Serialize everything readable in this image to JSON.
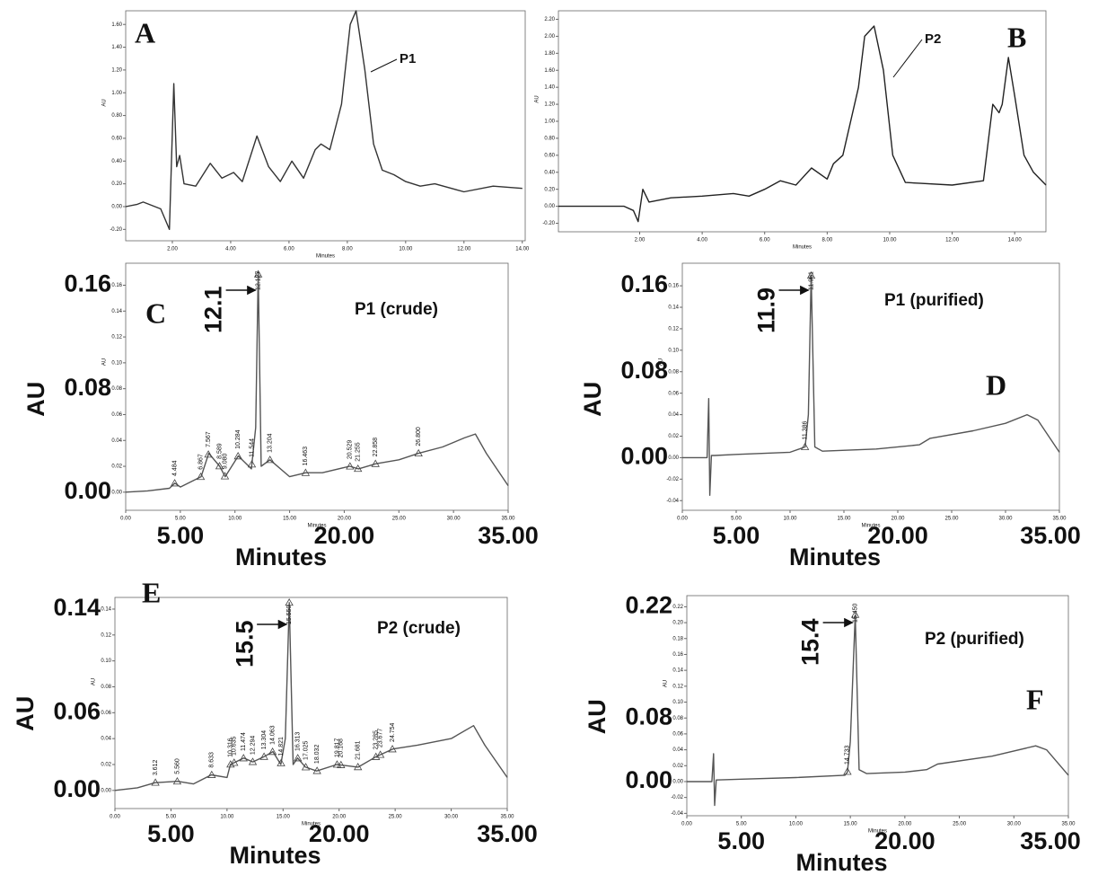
{
  "chart_data": [
    {
      "type": "line",
      "panel": "A",
      "peak_tag": "P1",
      "x_label": "Minutes",
      "y_label": "AU",
      "xlim": [
        0.4,
        14.1
      ],
      "ylim": [
        -0.3,
        1.72
      ],
      "xticks": [
        {
          "value": 2,
          "label": "2.00"
        },
        {
          "value": 4,
          "label": "4.00"
        },
        {
          "value": 6,
          "label": "6.00"
        },
        {
          "value": 8,
          "label": "8.00"
        },
        {
          "value": 10,
          "label": "10.00"
        },
        {
          "value": 12,
          "label": "12.00"
        },
        {
          "value": 14,
          "label": "14.00"
        }
      ],
      "yticks": [
        {
          "value": -0.2,
          "label": "-0.20"
        },
        {
          "value": 0,
          "label": "0.00"
        },
        {
          "value": 0.2,
          "label": "0.20"
        },
        {
          "value": 0.4,
          "label": "0.40"
        },
        {
          "value": 0.6,
          "label": "0.60"
        },
        {
          "value": 0.8,
          "label": "0.80"
        },
        {
          "value": 1,
          "label": "1.00"
        },
        {
          "value": 1.2,
          "label": "1.20"
        },
        {
          "value": 1.4,
          "label": "1.40"
        },
        {
          "value": 1.6,
          "label": "1.60"
        }
      ],
      "x": [
        0.4,
        0.8,
        1,
        1.6,
        1.9,
        2.05,
        2.15,
        2.25,
        2.4,
        2.8,
        3.3,
        3.7,
        4.1,
        4.4,
        4.9,
        5.3,
        5.7,
        6.1,
        6.5,
        6.9,
        7.1,
        7.4,
        7.8,
        8.1,
        8.3,
        8.6,
        8.9,
        9.2,
        9.6,
        10,
        10.5,
        11,
        12,
        13,
        14
      ],
      "series": [
        {
          "color": "#333333",
          "values": [
            0,
            0.02,
            0.04,
            -0.02,
            -0.2,
            1.08,
            0.35,
            0.45,
            0.2,
            0.18,
            0.38,
            0.25,
            0.3,
            0.22,
            0.62,
            0.35,
            0.22,
            0.4,
            0.25,
            0.5,
            0.55,
            0.5,
            0.9,
            1.6,
            1.72,
            1.2,
            0.55,
            0.32,
            0.28,
            0.22,
            0.18,
            0.2,
            0.13,
            0.18,
            0.16
          ]
        }
      ]
    },
    {
      "type": "line",
      "panel": "B",
      "peak_tag": "P2",
      "x_label": "Minutes",
      "y_label": "AU",
      "xlim": [
        -0.6,
        15
      ],
      "ylim": [
        -0.3,
        2.3
      ],
      "xticks": [
        {
          "value": 2,
          "label": "2.00"
        },
        {
          "value": 4,
          "label": "4.00"
        },
        {
          "value": 6,
          "label": "6.00"
        },
        {
          "value": 8,
          "label": "8.00"
        },
        {
          "value": 10,
          "label": "10.00"
        },
        {
          "value": 12,
          "label": "12.00"
        },
        {
          "value": 14,
          "label": "14.00"
        }
      ],
      "yticks": [
        {
          "value": -0.2,
          "label": "-0.20"
        },
        {
          "value": 0,
          "label": "0.00"
        },
        {
          "value": 0.2,
          "label": "0.20"
        },
        {
          "value": 0.4,
          "label": "0.40"
        },
        {
          "value": 0.6,
          "label": "0.60"
        },
        {
          "value": 0.8,
          "label": "0.80"
        },
        {
          "value": 1,
          "label": "1.00"
        },
        {
          "value": 1.2,
          "label": "1.20"
        },
        {
          "value": 1.4,
          "label": "1.40"
        },
        {
          "value": 1.6,
          "label": "1.60"
        },
        {
          "value": 1.8,
          "label": "1.80"
        },
        {
          "value": 2,
          "label": "2.00"
        },
        {
          "value": 2.2,
          "label": "2.20"
        }
      ],
      "x": [
        -0.6,
        1,
        1.5,
        1.8,
        1.95,
        2.1,
        2.3,
        3,
        4,
        5,
        5.5,
        6,
        6.5,
        7,
        7.5,
        8,
        8.2,
        8.5,
        9,
        9.2,
        9.5,
        9.8,
        10.1,
        10.5,
        11,
        12,
        13,
        13.3,
        13.5,
        13.6,
        13.8,
        14,
        14.3,
        14.6,
        15
      ],
      "series": [
        {
          "color": "#222222",
          "values": [
            0,
            0,
            0,
            -0.05,
            -0.18,
            0.2,
            0.05,
            0.1,
            0.12,
            0.15,
            0.12,
            0.2,
            0.3,
            0.25,
            0.45,
            0.32,
            0.5,
            0.6,
            1.4,
            2.0,
            2.12,
            1.6,
            0.6,
            0.28,
            0.27,
            0.25,
            0.3,
            1.2,
            1.1,
            1.2,
            1.75,
            1.3,
            0.6,
            0.4,
            0.25
          ]
        }
      ]
    },
    {
      "type": "line",
      "panel": "C",
      "title": "P1 (crude)",
      "callout": 12.1,
      "x_label": "Minutes",
      "y_label": "AU",
      "xlim": [
        0,
        35
      ],
      "ylim": [
        -0.014,
        0.177
      ],
      "xticks": [
        {
          "value": 0,
          "label": "0.00"
        },
        {
          "value": 5,
          "label": "5.00"
        },
        {
          "value": 10,
          "label": "10.00"
        },
        {
          "value": 15,
          "label": "15.00"
        },
        {
          "value": 20,
          "label": "20.00"
        },
        {
          "value": 25,
          "label": "25.00"
        },
        {
          "value": 30,
          "label": "30.00"
        },
        {
          "value": 35,
          "label": "35.00"
        }
      ],
      "yticks": [
        {
          "value": 0,
          "label": "0.00"
        },
        {
          "value": 0.02,
          "label": "0.02"
        },
        {
          "value": 0.04,
          "label": "0.04"
        },
        {
          "value": 0.06,
          "label": "0.06"
        },
        {
          "value": 0.08,
          "label": "0.08"
        },
        {
          "value": 0.1,
          "label": "0.10"
        },
        {
          "value": 0.12,
          "label": "0.12"
        },
        {
          "value": 0.14,
          "label": "0.14"
        },
        {
          "value": 0.16,
          "label": "0.16"
        }
      ],
      "big_yticks": [
        {
          "value": 0.16,
          "label": "0.16"
        },
        {
          "value": 0.08,
          "label": "0.08"
        },
        {
          "value": 0,
          "label": "0.00"
        }
      ],
      "big_xticks": [
        {
          "value": 5,
          "label": "5.00"
        },
        {
          "value": 20,
          "label": "20.00"
        },
        {
          "value": 35,
          "label": "35.00"
        }
      ],
      "peaks": [
        4.484,
        6.867,
        7.567,
        8.589,
        {
          "value": 9.08,
          "label": "9.080"
        },
        10.284,
        11.544,
        12.127,
        13.204,
        16.463,
        20.529,
        21.255,
        22.858,
        {
          "value": 26.8,
          "label": "26.800"
        }
      ],
      "x": [
        0,
        2,
        4,
        4.5,
        5,
        6.9,
        7.6,
        8.6,
        9.1,
        10.3,
        11.5,
        11.9,
        12.13,
        12.4,
        13.2,
        15,
        16.5,
        18,
        20.5,
        21.3,
        22.9,
        25,
        26.8,
        29,
        31,
        32,
        33,
        35
      ],
      "series": [
        {
          "color": "#555555",
          "values": [
            0,
            0.001,
            0.003,
            0.007,
            0.004,
            0.012,
            0.03,
            0.02,
            0.012,
            0.028,
            0.018,
            0.05,
            0.17,
            0.02,
            0.025,
            0.012,
            0.015,
            0.015,
            0.02,
            0.018,
            0.022,
            0.025,
            0.03,
            0.035,
            0.042,
            0.045,
            0.03,
            0.005
          ]
        }
      ]
    },
    {
      "type": "line",
      "panel": "D",
      "title": "P1 (purified)",
      "callout": 11.9,
      "x_label": "Minutes",
      "y_label": "AU",
      "xlim": [
        0,
        35
      ],
      "ylim": [
        -0.049,
        0.181
      ],
      "xticks": [
        {
          "value": 0,
          "label": "0.00"
        },
        {
          "value": 5,
          "label": "5.00"
        },
        {
          "value": 10,
          "label": "10.00"
        },
        {
          "value": 15,
          "label": "15.00"
        },
        {
          "value": 20,
          "label": "20.00"
        },
        {
          "value": 25,
          "label": "25.00"
        },
        {
          "value": 30,
          "label": "30.00"
        },
        {
          "value": 35,
          "label": "35.00"
        }
      ],
      "yticks": [
        {
          "value": -0.04,
          "label": "-0.04"
        },
        {
          "value": -0.02,
          "label": "-0.02"
        },
        {
          "value": 0,
          "label": "0.00"
        },
        {
          "value": 0.02,
          "label": "0.02"
        },
        {
          "value": 0.04,
          "label": "0.04"
        },
        {
          "value": 0.06,
          "label": "0.06"
        },
        {
          "value": 0.08,
          "label": "0.08"
        },
        {
          "value": 0.1,
          "label": "0.10"
        },
        {
          "value": 0.12,
          "label": "0.12"
        },
        {
          "value": 0.14,
          "label": "0.14"
        },
        {
          "value": 0.16,
          "label": "0.16"
        }
      ],
      "big_yticks": [
        {
          "value": 0.16,
          "label": "0.16"
        },
        {
          "value": 0.08,
          "label": "0.08"
        },
        {
          "value": 0,
          "label": "0.00"
        }
      ],
      "big_xticks": [
        {
          "value": 5,
          "label": "5.00"
        },
        {
          "value": 20,
          "label": "20.00"
        },
        {
          "value": 35,
          "label": "35.00"
        }
      ],
      "peaks": [
        11.386,
        11.961
      ],
      "x": [
        0,
        2.3,
        2.45,
        2.55,
        2.7,
        3,
        5,
        10,
        11.4,
        11.7,
        11.96,
        12.3,
        13,
        18,
        22,
        23,
        27,
        30,
        32,
        33,
        35
      ],
      "series": [
        {
          "color": "#555555",
          "values": [
            0,
            0,
            0.055,
            -0.035,
            0.002,
            0.002,
            0.003,
            0.005,
            0.01,
            0.04,
            0.17,
            0.01,
            0.006,
            0.008,
            0.012,
            0.018,
            0.025,
            0.032,
            0.04,
            0.035,
            0.005
          ]
        }
      ]
    },
    {
      "type": "line",
      "panel": "E",
      "title": "P2 (crude)",
      "callout": 15.5,
      "x_label": "Minutes",
      "y_label": "AU",
      "xlim": [
        0,
        35
      ],
      "ylim": [
        -0.014,
        0.149
      ],
      "xticks": [
        {
          "value": 0,
          "label": "0.00"
        },
        {
          "value": 5,
          "label": "5.00"
        },
        {
          "value": 10,
          "label": "10.00"
        },
        {
          "value": 15,
          "label": "15.00"
        },
        {
          "value": 20,
          "label": "20.00"
        },
        {
          "value": 25,
          "label": "25.00"
        },
        {
          "value": 30,
          "label": "30.00"
        },
        {
          "value": 35,
          "label": "35.00"
        }
      ],
      "yticks": [
        {
          "value": 0,
          "label": "0.00"
        },
        {
          "value": 0.02,
          "label": "0.02"
        },
        {
          "value": 0.04,
          "label": "0.04"
        },
        {
          "value": 0.06,
          "label": "0.06"
        },
        {
          "value": 0.08,
          "label": "0.08"
        },
        {
          "value": 0.1,
          "label": "0.10"
        },
        {
          "value": 0.12,
          "label": "0.12"
        },
        {
          "value": 0.14,
          "label": "0.14"
        }
      ],
      "big_yticks": [
        {
          "value": 0.14,
          "label": "0.14"
        },
        {
          "value": 0.06,
          "label": "0.06"
        },
        {
          "value": 0,
          "label": "0.00"
        }
      ],
      "big_xticks": [
        {
          "value": 5,
          "label": "5.00"
        },
        {
          "value": 20,
          "label": "20.00"
        },
        {
          "value": 35,
          "label": "35.00"
        }
      ],
      "peaks": [
        3.612,
        {
          "value": 5.56,
          "label": "5.560"
        },
        8.633,
        10.316,
        10.635,
        11.474,
        12.294,
        13.304,
        14.063,
        14.821,
        {
          "value": 15.55,
          "label": "15.550"
        },
        16.313,
        17.025,
        18.032,
        19.817,
        20.168,
        21.681,
        23.285,
        23.677,
        24.754
      ],
      "x": [
        0,
        2,
        3.6,
        5.6,
        7,
        8.6,
        10,
        10.3,
        11.5,
        12.3,
        13.3,
        14.1,
        14.8,
        15.2,
        15.55,
        15.9,
        16.3,
        17,
        18,
        19.8,
        21.7,
        23.3,
        24.8,
        27,
        30,
        32,
        33,
        35
      ],
      "series": [
        {
          "color": "#555555",
          "values": [
            0,
            0.002,
            0.006,
            0.007,
            0.005,
            0.012,
            0.01,
            0.02,
            0.025,
            0.022,
            0.026,
            0.03,
            0.02,
            0.04,
            0.145,
            0.02,
            0.025,
            0.018,
            0.015,
            0.02,
            0.018,
            0.026,
            0.032,
            0.035,
            0.04,
            0.05,
            0.035,
            0.01
          ]
        }
      ]
    },
    {
      "type": "line",
      "panel": "F",
      "title": "P2 (purified)",
      "callout": 15.4,
      "x_label": "Minutes",
      "y_label": "AU",
      "xlim": [
        0,
        35
      ],
      "ylim": [
        -0.043,
        0.234
      ],
      "xticks": [
        {
          "value": 0,
          "label": "0.00"
        },
        {
          "value": 5,
          "label": "5.00"
        },
        {
          "value": 10,
          "label": "10.00"
        },
        {
          "value": 15,
          "label": "15.00"
        },
        {
          "value": 20,
          "label": "20.00"
        },
        {
          "value": 25,
          "label": "25.00"
        },
        {
          "value": 30,
          "label": "30.00"
        },
        {
          "value": 35,
          "label": "35.00"
        }
      ],
      "yticks": [
        {
          "value": -0.04,
          "label": "-0.04"
        },
        {
          "value": -0.02,
          "label": "-0.02"
        },
        {
          "value": 0,
          "label": "0.00"
        },
        {
          "value": 0.02,
          "label": "0.02"
        },
        {
          "value": 0.04,
          "label": "0.04"
        },
        {
          "value": 0.06,
          "label": "0.06"
        },
        {
          "value": 0.08,
          "label": "0.08"
        },
        {
          "value": 0.1,
          "label": "0.10"
        },
        {
          "value": 0.12,
          "label": "0.12"
        },
        {
          "value": 0.14,
          "label": "0.14"
        },
        {
          "value": 0.16,
          "label": "0.16"
        },
        {
          "value": 0.18,
          "label": "0.18"
        },
        {
          "value": 0.2,
          "label": "0.20"
        },
        {
          "value": 0.22,
          "label": "0.22"
        }
      ],
      "big_yticks": [
        {
          "value": 0.22,
          "label": "0.22"
        },
        {
          "value": 0.08,
          "label": "0.08"
        },
        {
          "value": 0,
          "label": "0.00"
        }
      ],
      "big_xticks": [
        {
          "value": 5,
          "label": "5.00"
        },
        {
          "value": 20,
          "label": "20.00"
        },
        {
          "value": 35,
          "label": "35.00"
        }
      ],
      "peaks": [
        14.733,
        {
          "value": 15.45,
          "label": "15.450"
        }
      ],
      "x": [
        0,
        2.3,
        2.45,
        2.55,
        2.7,
        5,
        10,
        14.5,
        14.73,
        15,
        15.45,
        15.8,
        16.5,
        20,
        22,
        23,
        28,
        32,
        33,
        35
      ],
      "series": [
        {
          "color": "#555555",
          "values": [
            0,
            0,
            0.035,
            -0.03,
            0.002,
            0.003,
            0.005,
            0.008,
            0.012,
            0.05,
            0.21,
            0.015,
            0.01,
            0.012,
            0.015,
            0.022,
            0.032,
            0.045,
            0.04,
            0.008
          ]
        }
      ]
    }
  ]
}
